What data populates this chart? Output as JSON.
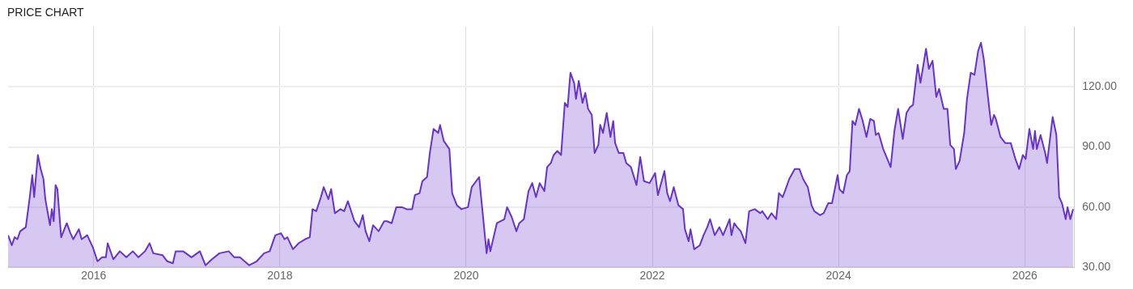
{
  "chart_data": {
    "type": "area",
    "title": "PRICE CHART",
    "x": [
      2015.08,
      2015.12,
      2015.15,
      2015.18,
      2015.21,
      2015.24,
      2015.27,
      2015.31,
      2015.34,
      2015.36,
      2015.4,
      2015.43,
      2015.46,
      2015.48,
      2015.53,
      2015.55,
      2015.57,
      2015.59,
      2015.61,
      2015.65,
      2015.71,
      2015.75,
      2015.78,
      2015.84,
      2015.87,
      2015.93,
      2015.99,
      2016.04,
      2016.09,
      2016.13,
      2016.15,
      2016.21,
      2016.28,
      2016.35,
      2016.42,
      2016.48,
      2016.55,
      2016.6,
      2016.64,
      2016.74,
      2016.79,
      2016.85,
      2016.88,
      2016.96,
      2017.05,
      2017.14,
      2017.2,
      2017.27,
      2017.35,
      2017.45,
      2017.51,
      2017.57,
      2017.67,
      2017.75,
      2017.83,
      2017.89,
      2017.95,
      2018.01,
      2018.05,
      2018.08,
      2018.14,
      2018.2,
      2018.27,
      2018.32,
      2018.35,
      2018.39,
      2018.44,
      2018.47,
      2018.52,
      2018.55,
      2018.59,
      2018.65,
      2018.69,
      2018.73,
      2018.8,
      2018.85,
      2018.89,
      2018.92,
      2018.96,
      2019.0,
      2019.06,
      2019.12,
      2019.15,
      2019.2,
      2019.25,
      2019.31,
      2019.36,
      2019.42,
      2019.45,
      2019.5,
      2019.53,
      2019.58,
      2019.61,
      2019.65,
      2019.7,
      2019.72,
      2019.76,
      2019.82,
      2019.85,
      2019.9,
      2019.95,
      2020.02,
      2020.06,
      2020.14,
      2020.18,
      2020.22,
      2020.24,
      2020.26,
      2020.3,
      2020.33,
      2020.41,
      2020.44,
      2020.49,
      2020.54,
      2020.57,
      2020.62,
      2020.67,
      2020.71,
      2020.75,
      2020.79,
      2020.84,
      2020.87,
      2020.91,
      2020.94,
      2020.98,
      2021.02,
      2021.06,
      2021.09,
      2021.12,
      2021.16,
      2021.18,
      2021.21,
      2021.25,
      2021.28,
      2021.31,
      2021.35,
      2021.38,
      2021.42,
      2021.44,
      2021.47,
      2021.51,
      2021.55,
      2021.58,
      2021.6,
      2021.64,
      2021.69,
      2021.72,
      2021.77,
      2021.83,
      2021.87,
      2021.91,
      2021.97,
      2022.03,
      2022.06,
      2022.13,
      2022.16,
      2022.19,
      2022.23,
      2022.28,
      2022.33,
      2022.35,
      2022.39,
      2022.41,
      2022.45,
      2022.51,
      2022.55,
      2022.59,
      2022.62,
      2022.67,
      2022.72,
      2022.76,
      2022.83,
      2022.85,
      2022.88,
      2022.91,
      2022.95,
      2023.0,
      2023.04,
      2023.1,
      2023.16,
      2023.18,
      2023.24,
      2023.28,
      2023.33,
      2023.36,
      2023.4,
      2023.44,
      2023.47,
      2023.53,
      2023.58,
      2023.62,
      2023.67,
      2023.71,
      2023.74,
      2023.8,
      2023.84,
      2023.89,
      2023.93,
      2023.99,
      2024.01,
      2024.05,
      2024.09,
      2024.12,
      2024.15,
      2024.18,
      2024.22,
      2024.26,
      2024.3,
      2024.34,
      2024.38,
      2024.4,
      2024.43,
      2024.48,
      2024.56,
      2024.6,
      2024.64,
      2024.69,
      2024.73,
      2024.77,
      2024.8,
      2024.85,
      2024.88,
      2024.94,
      2024.97,
      2025.01,
      2025.05,
      2025.08,
      2025.13,
      2025.17,
      2025.2,
      2025.24,
      2025.26,
      2025.3,
      2025.35,
      2025.38,
      2025.42,
      2025.46,
      2025.5,
      2025.53,
      2025.56,
      2025.61,
      2025.64,
      2025.67,
      2025.69,
      2025.74,
      2025.79,
      2025.85,
      2025.9,
      2025.94,
      2025.98,
      2026.01,
      2026.05,
      2026.09,
      2026.11,
      2026.13,
      2026.17,
      2026.22,
      2026.24,
      2026.3,
      2026.34,
      2026.37,
      2026.4,
      2026.44,
      2026.46,
      2026.49,
      2026.52
    ],
    "series": [
      {
        "color": "#6633cc",
        "values": [
          46,
          41,
          45,
          44,
          48,
          49,
          50,
          64,
          76,
          65,
          86,
          79,
          74,
          64,
          51,
          59,
          53,
          71,
          69,
          45,
          52,
          47,
          44,
          49,
          44,
          46,
          40,
          33,
          35,
          35,
          42,
          34,
          38,
          35,
          38,
          35,
          38,
          42,
          37,
          36,
          33,
          32,
          38,
          38,
          35,
          38,
          31,
          34,
          37,
          38,
          35,
          35,
          31,
          33,
          37,
          38,
          46,
          47,
          44,
          45,
          39,
          42,
          44,
          45,
          59,
          58,
          65,
          70,
          64,
          69,
          57,
          59,
          58,
          63,
          53,
          50,
          56,
          48,
          43,
          51,
          48,
          53,
          53,
          52,
          60,
          60,
          59,
          59,
          66,
          67,
          73,
          75,
          87,
          99,
          97,
          101,
          93,
          89,
          67,
          61,
          59,
          60,
          70,
          75,
          56,
          37,
          44,
          38,
          46,
          52,
          54,
          60,
          55,
          48,
          52,
          54,
          68,
          72,
          65,
          72,
          68,
          80,
          82,
          86,
          88,
          86,
          112,
          110,
          127,
          122,
          114,
          123,
          112,
          117,
          109,
          106,
          87,
          91,
          101,
          97,
          107,
          95,
          103,
          92,
          87,
          87,
          82,
          80,
          71,
          85,
          73,
          72,
          77,
          66,
          78,
          67,
          63,
          70,
          61,
          59,
          49,
          43,
          49,
          39,
          41,
          46,
          50,
          54,
          46,
          50,
          46,
          54,
          46,
          52,
          50,
          48,
          42,
          58,
          59,
          57,
          58,
          54,
          57,
          54,
          67,
          65,
          70,
          74,
          79,
          79,
          74,
          70,
          61,
          58,
          56,
          57,
          62,
          62,
          76,
          69,
          67,
          76,
          78,
          103,
          101,
          109,
          103,
          95,
          104,
          103,
          96,
          97,
          89,
          80,
          98,
          109,
          94,
          107,
          110,
          111,
          131,
          122,
          139,
          129,
          133,
          115,
          119,
          109,
          109,
          91,
          89,
          79,
          83,
          97,
          114,
          127,
          126,
          138,
          142,
          134,
          113,
          101,
          106,
          104,
          95,
          92,
          92,
          84,
          79,
          86,
          84,
          99,
          89,
          98,
          89,
          96,
          87,
          82,
          105,
          96,
          65,
          62,
          54,
          60,
          54,
          59
        ]
      }
    ],
    "xlim": [
      2015.08,
      2026.53
    ],
    "xticks": [
      2016,
      2018,
      2020,
      2022,
      2024,
      2026
    ],
    "ylim": [
      30,
      150
    ],
    "yticks": [
      {
        "value": 30,
        "label": "30.00"
      },
      {
        "value": 60,
        "label": "60.00"
      },
      {
        "value": 90,
        "label": "90.00"
      },
      {
        "value": 120,
        "label": "120.00"
      }
    ],
    "grid": true,
    "legend": false
  }
}
